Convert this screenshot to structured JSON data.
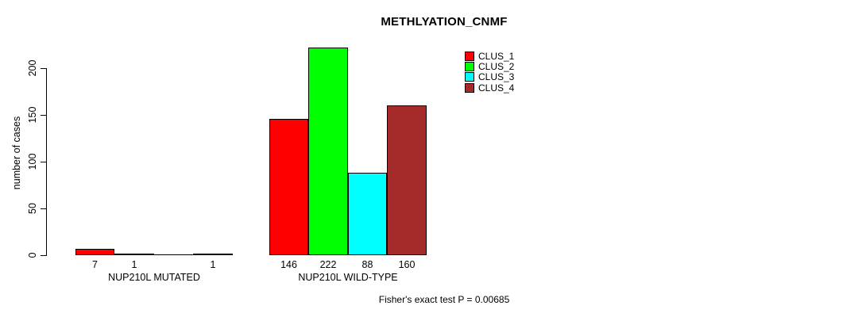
{
  "title": "METHLYATION_CNMF",
  "footer": "Fisher's exact test P = 0.00685",
  "chart_data": {
    "type": "bar",
    "title": "METHLYATION_CNMF",
    "xlabel": "",
    "ylabel": "number of cases",
    "ylim": [
      0,
      230
    ],
    "yticks": [
      0,
      50,
      100,
      150,
      200
    ],
    "grid": false,
    "legend_position": "top-right",
    "categories": [
      "NUP210L MUTATED",
      "NUP210L WILD-TYPE"
    ],
    "series": [
      {
        "name": "CLUS_1",
        "color": "#FF0000",
        "values": [
          7,
          146
        ]
      },
      {
        "name": "CLUS_2",
        "color": "#00FF00",
        "values": [
          1,
          222
        ]
      },
      {
        "name": "CLUS_3",
        "color": "#00FFFF",
        "values": [
          0,
          88
        ]
      },
      {
        "name": "CLUS_4",
        "color": "#A52A2A",
        "values": [
          1,
          160
        ]
      }
    ],
    "bar_value_labels": [
      [
        "7",
        "1",
        "",
        "1"
      ],
      [
        "146",
        "222",
        "88",
        "160"
      ]
    ],
    "annotation": "Fisher's exact test P = 0.00685",
    "axis_color": "#000000",
    "bar_border_color": "#000000"
  }
}
